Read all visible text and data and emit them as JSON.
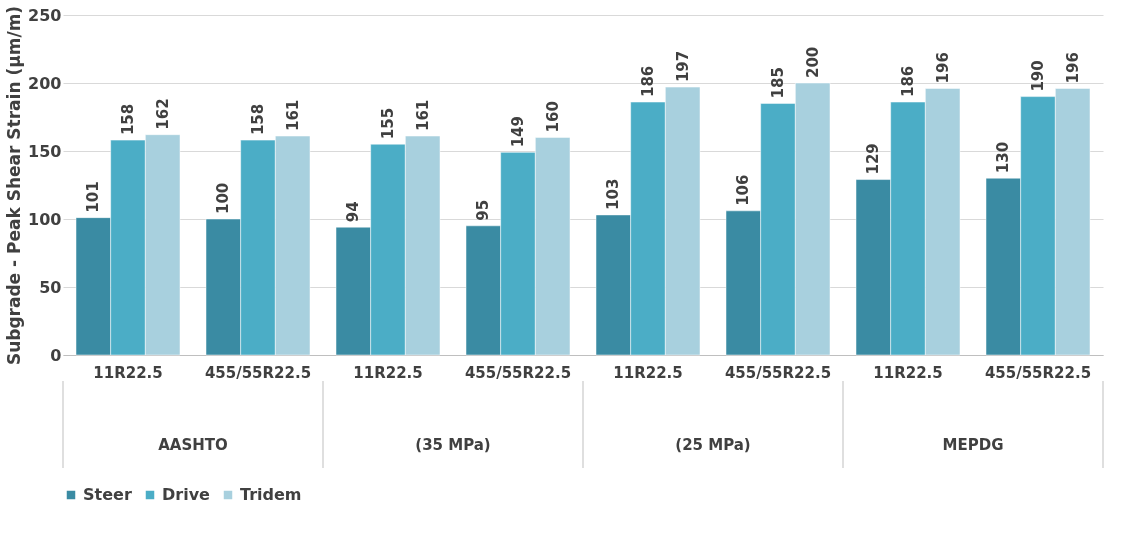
{
  "chart_data": {
    "type": "bar",
    "ylabel": "Subgrade - Peak Shear Strain (µm/m)",
    "categories": [
      "11R22.5",
      "455/55R22.5",
      "11R22.5",
      "455/55R22.5",
      "11R22.5",
      "455/55R22.5",
      "11R22.5",
      "455/55R22.5"
    ],
    "series": [
      {
        "name": "Steer",
        "color": "#3a8ba3",
        "values": [
          101,
          100,
          94,
          95,
          103,
          106,
          129,
          130
        ]
      },
      {
        "name": "Drive",
        "color": "#4badc6",
        "values": [
          158,
          158,
          155,
          149,
          186,
          185,
          186,
          190
        ]
      },
      {
        "name": "Tridem",
        "color": "#a8d0de",
        "values": [
          162,
          161,
          161,
          160,
          197,
          200,
          196,
          196
        ]
      }
    ],
    "annotations": [
      "AASHTO",
      "(35 MPa)",
      "(25 MPa)",
      "MEPDG"
    ],
    "ylim": [
      0,
      250
    ],
    "yticks": [
      0,
      50,
      100,
      150,
      200,
      250
    ],
    "grid": "y",
    "legend": "bottom",
    "data_labels": true
  }
}
